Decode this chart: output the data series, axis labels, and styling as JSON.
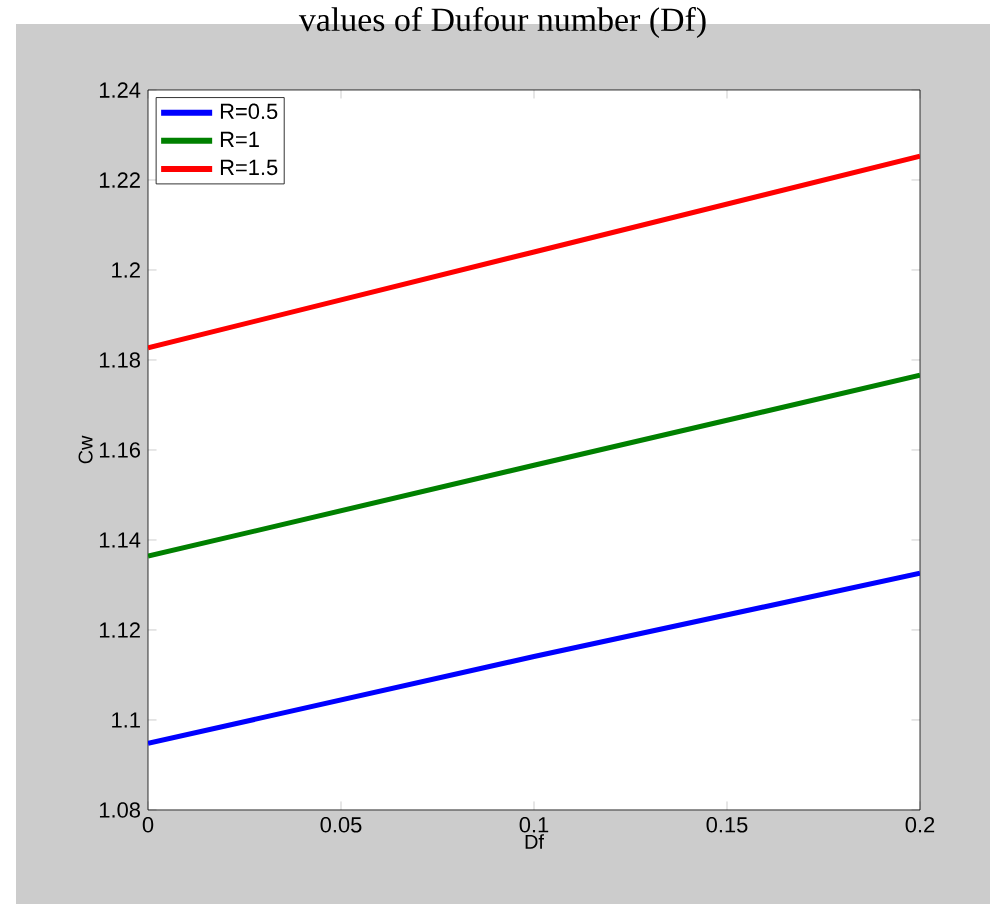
{
  "chart_data": {
    "type": "line",
    "title": "values of Dufour number (Df)",
    "xlabel": "Df",
    "ylabel": "Cw",
    "x": [
      0,
      0.1,
      0.2
    ],
    "series": [
      {
        "name": "R=0.5",
        "color": "#0000ff",
        "values": [
          1.0948,
          1.1141,
          1.1326
        ]
      },
      {
        "name": "R=1",
        "color": "#008000",
        "values": [
          1.1364,
          1.1566,
          1.1766
        ]
      },
      {
        "name": "R=1.5",
        "color": "#ff0000",
        "values": [
          1.1827,
          1.204,
          1.2253
        ]
      }
    ],
    "xlim": [
      0,
      0.2
    ],
    "ylim": [
      1.08,
      1.24
    ],
    "xticks": [
      0,
      0.05,
      0.1,
      0.15,
      0.2
    ],
    "yticks": [
      1.08,
      1.1,
      1.12,
      1.14,
      1.16,
      1.18,
      1.2,
      1.22,
      1.24
    ],
    "grid": false,
    "legend": "top left",
    "line_style": "solid",
    "marker": "none"
  }
}
